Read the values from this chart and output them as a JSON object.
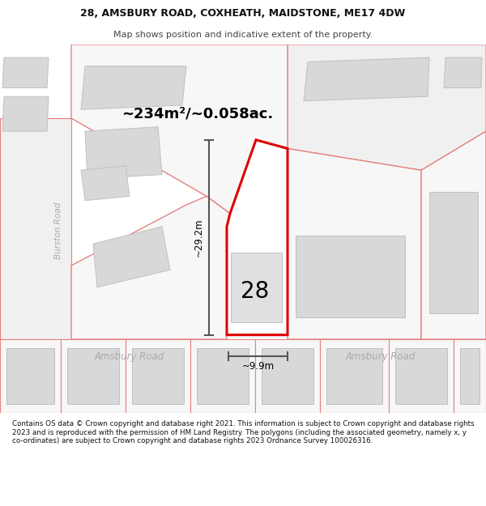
{
  "title_line1": "28, AMSBURY ROAD, COXHEATH, MAIDSTONE, ME17 4DW",
  "title_line2": "Map shows position and indicative extent of the property.",
  "area_label": "~234m²/~0.058ac.",
  "width_label": "~9.9m",
  "height_label": "~29.2m",
  "number_label": "28",
  "road_label_left": "Amsbury Road",
  "road_label_right": "Amsbury Road",
  "road_label_vert": "Burston Road",
  "footer_text": "Contains OS data © Crown copyright and database right 2021. This information is subject to Crown copyright and database rights 2023 and is reproduced with the permission of HM Land Registry. The polygons (including the associated geometry, namely x, y co-ordinates) are subject to Crown copyright and database rights 2023 Ordnance Survey 100026316.",
  "map_bg": "#ffffff",
  "road_fill": "#f0f0f0",
  "parcel_fill": "#f7f7f7",
  "parcel_stroke": "#e88080",
  "building_fill": "#d8d8d8",
  "building_stroke": "#c8c8c8",
  "highlight_stroke": "#dd0000",
  "highlight_fill": "#ffffff",
  "dim_line_color": "#555555",
  "road_text_color": "#aaaaaa",
  "title_color": "#111111",
  "footer_color": "#111111",
  "title_fontsize": 9.0,
  "subtitle_fontsize": 8.0,
  "area_fontsize": 13.0,
  "dim_fontsize": 8.5,
  "number_fontsize": 20,
  "road_fontsize": 8.5
}
